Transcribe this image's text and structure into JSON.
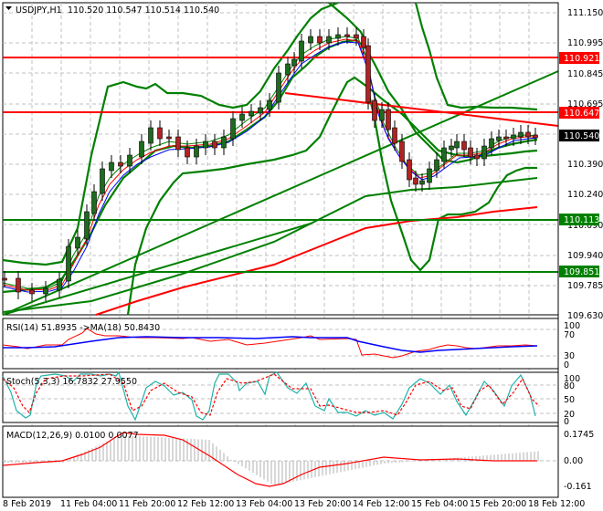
{
  "header": {
    "symbol": "USDJPY,H1",
    "ohlc": "110.520 110.547 110.514 110.540",
    "menu_icon": "triangle-down-icon"
  },
  "price_axis": {
    "ticks": [
      "111.150",
      "110.995",
      "110.845",
      "110.695",
      "110.540",
      "110.390",
      "110.240",
      "110.090",
      "109.940",
      "109.785",
      "109.630"
    ],
    "current_price": "110.540",
    "levels": [
      {
        "value": "110.921",
        "color": "#ff0000"
      },
      {
        "value": "110.647",
        "color": "#ff0000"
      },
      {
        "value": "110.113",
        "color": "#008000"
      },
      {
        "value": "109.851",
        "color": "#008000"
      }
    ]
  },
  "rsi": {
    "label": "RSI(14) 51.8935  ->MA(18) 50.8430",
    "ticks": [
      "100",
      "70",
      "30",
      "0"
    ]
  },
  "stoch": {
    "label": "Stoch(5,3,3) 16.7832 27.9550",
    "ticks": [
      "100",
      "80",
      "50",
      "20",
      "0"
    ]
  },
  "macd": {
    "label": "MACD(12,26,9) 0.0100 0.0077",
    "ticks": [
      "0.1745",
      "0.00",
      "-0.161"
    ]
  },
  "time_axis": {
    "ticks": [
      "8 Feb 2019",
      "11 Feb 04:00",
      "11 Feb 20:00",
      "12 Feb 12:00",
      "13 Feb 04:00",
      "13 Feb 20:00",
      "14 Feb 12:00",
      "15 Feb 04:00",
      "15 Feb 20:00",
      "18 Feb 12:00"
    ]
  },
  "chart_data": {
    "type": "candlestick",
    "title": "USDJPY,H1",
    "ohlc_last": {
      "open": 110.52,
      "high": 110.547,
      "low": 110.514,
      "close": 110.54
    },
    "x": [
      "8 Feb 2019",
      "11 Feb 04:00",
      "11 Feb 20:00",
      "12 Feb 12:00",
      "13 Feb 04:00",
      "13 Feb 20:00",
      "14 Feb 12:00",
      "15 Feb 04:00",
      "15 Feb 20:00",
      "18 Feb 12:00"
    ],
    "close_approx": [
      109.8,
      110.1,
      110.5,
      110.5,
      110.65,
      111.0,
      110.55,
      110.3,
      110.45,
      110.54
    ],
    "ylim": [
      109.6,
      111.22
    ],
    "horizontal_levels": [
      110.921,
      110.647,
      110.113,
      109.851
    ],
    "indicators": [
      {
        "name": "RSI(14)",
        "value": 51.8935,
        "ma": "MA(18)",
        "ma_value": 50.843,
        "ylim": [
          0,
          100
        ],
        "levels": [
          30,
          70
        ]
      },
      {
        "name": "Stoch(5,3,3)",
        "k": 16.7832,
        "d": 27.955,
        "ylim": [
          0,
          100
        ],
        "levels": [
          20,
          50,
          80
        ]
      },
      {
        "name": "MACD(12,26,9)",
        "main": 0.01,
        "signal": 0.0077,
        "ylim": [
          -0.161,
          0.1745
        ]
      }
    ],
    "legend": [
      "Bollinger Bands (green)",
      "Moving averages (red/blue/green thin)",
      "Trendlines (red/green)"
    ],
    "grid": true
  }
}
